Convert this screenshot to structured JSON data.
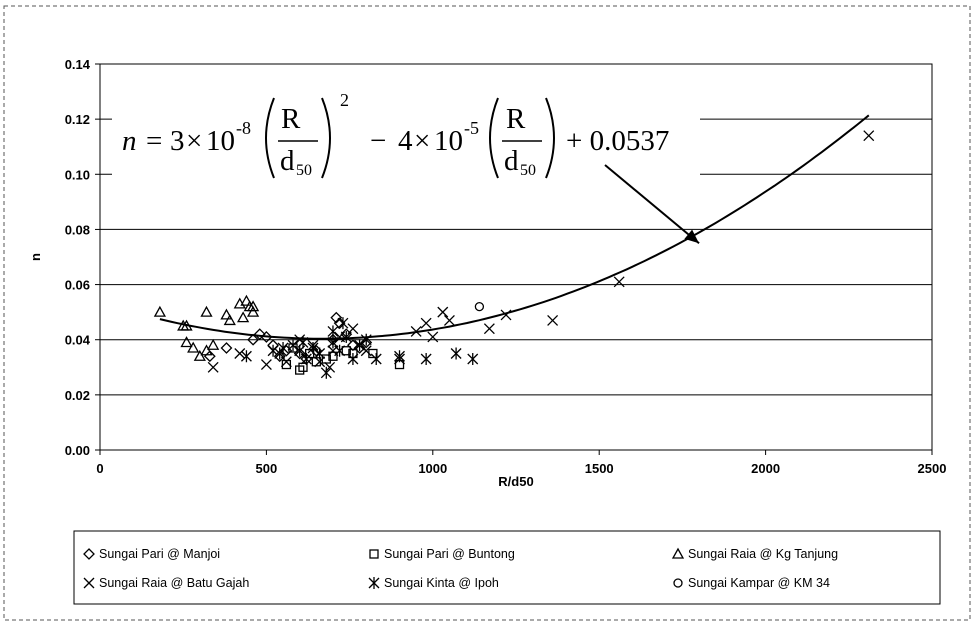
{
  "chart_data": {
    "type": "scatter",
    "title": "",
    "xlabel": "R/d50",
    "ylabel": "n",
    "xlim": [
      0,
      2500
    ],
    "ylim": [
      0,
      0.14
    ],
    "x_ticks": [
      "0",
      "500",
      "1000",
      "1500",
      "2000",
      "2500"
    ],
    "y_ticks": [
      "0.00",
      "0.02",
      "0.04",
      "0.06",
      "0.08",
      "0.10",
      "0.12",
      "0.14"
    ],
    "grid": "horizontal",
    "legend_position": "bottom",
    "series": [
      {
        "name": "Sungai Pari @ Manjoi",
        "marker": "diamond",
        "points": [
          [
            330,
            0.034
          ],
          [
            380,
            0.037
          ],
          [
            460,
            0.04
          ],
          [
            480,
            0.042
          ],
          [
            500,
            0.041
          ],
          [
            520,
            0.038
          ],
          [
            560,
            0.036
          ],
          [
            600,
            0.035
          ],
          [
            650,
            0.036
          ],
          [
            700,
            0.04
          ],
          [
            710,
            0.048
          ],
          [
            720,
            0.046
          ],
          [
            740,
            0.042
          ],
          [
            760,
            0.038
          ],
          [
            780,
            0.037
          ],
          [
            800,
            0.039
          ],
          [
            540,
            0.034
          ],
          [
            620,
            0.033
          ]
        ]
      },
      {
        "name": "Sungai Pari @ Buntong",
        "marker": "square",
        "points": [
          [
            560,
            0.031
          ],
          [
            600,
            0.029
          ],
          [
            610,
            0.03
          ],
          [
            630,
            0.035
          ],
          [
            650,
            0.032
          ],
          [
            680,
            0.033
          ],
          [
            700,
            0.034
          ],
          [
            740,
            0.036
          ],
          [
            760,
            0.035
          ],
          [
            820,
            0.035
          ],
          [
            900,
            0.031
          ],
          [
            580,
            0.037
          ]
        ]
      },
      {
        "name": "Sungai Raia @ Kg Tanjung",
        "marker": "triangle",
        "points": [
          [
            180,
            0.05
          ],
          [
            250,
            0.045
          ],
          [
            260,
            0.045
          ],
          [
            260,
            0.039
          ],
          [
            280,
            0.037
          ],
          [
            300,
            0.034
          ],
          [
            320,
            0.036
          ],
          [
            320,
            0.05
          ],
          [
            340,
            0.038
          ],
          [
            380,
            0.049
          ],
          [
            390,
            0.047
          ],
          [
            420,
            0.053
          ],
          [
            430,
            0.048
          ],
          [
            440,
            0.054
          ],
          [
            450,
            0.052
          ],
          [
            460,
            0.052
          ],
          [
            460,
            0.05
          ]
        ]
      },
      {
        "name": "Sungai Raia @ Batu Gajah",
        "marker": "x",
        "points": [
          [
            340,
            0.03
          ],
          [
            420,
            0.035
          ],
          [
            500,
            0.031
          ],
          [
            560,
            0.032
          ],
          [
            600,
            0.04
          ],
          [
            640,
            0.038
          ],
          [
            660,
            0.032
          ],
          [
            690,
            0.03
          ],
          [
            700,
            0.036
          ],
          [
            720,
            0.041
          ],
          [
            760,
            0.044
          ],
          [
            800,
            0.036
          ],
          [
            900,
            0.033
          ],
          [
            950,
            0.043
          ],
          [
            980,
            0.046
          ],
          [
            1000,
            0.041
          ],
          [
            1030,
            0.05
          ],
          [
            1050,
            0.047
          ],
          [
            1170,
            0.044
          ],
          [
            1220,
            0.049
          ],
          [
            1360,
            0.047
          ],
          [
            1560,
            0.061
          ],
          [
            2310,
            0.114
          ]
        ]
      },
      {
        "name": "Sungai Kinta @ Ipoh",
        "marker": "asterisk",
        "points": [
          [
            440,
            0.034
          ],
          [
            520,
            0.036
          ],
          [
            540,
            0.035
          ],
          [
            580,
            0.038
          ],
          [
            600,
            0.036
          ],
          [
            620,
            0.033
          ],
          [
            640,
            0.037
          ],
          [
            660,
            0.035
          ],
          [
            680,
            0.028
          ],
          [
            700,
            0.039
          ],
          [
            720,
            0.036
          ],
          [
            740,
            0.041
          ],
          [
            760,
            0.033
          ],
          [
            780,
            0.038
          ],
          [
            800,
            0.04
          ],
          [
            830,
            0.033
          ],
          [
            900,
            0.034
          ],
          [
            980,
            0.033
          ],
          [
            1070,
            0.035
          ],
          [
            1120,
            0.033
          ],
          [
            550,
            0.037
          ],
          [
            610,
            0.039
          ],
          [
            700,
            0.043
          ],
          [
            730,
            0.046
          ]
        ]
      },
      {
        "name": "Sungai Kampar @ KM 34",
        "marker": "circle",
        "points": [
          [
            1140,
            0.052
          ]
        ]
      }
    ],
    "trendline": {
      "name": "fitted curve",
      "a": 3e-08,
      "b": -4e-05,
      "c": 0.0537,
      "x_range": [
        180,
        2310
      ]
    },
    "annotation": {
      "text_parts": {
        "lhs": "n",
        "coef1": "3",
        "times": "×",
        "ten": "10",
        "exp1": "-8",
        "R": "R",
        "d": "d",
        "sub50": "50",
        "square": "2",
        "minus": "−",
        "coef2": "4",
        "exp2": "-5",
        "plus_const": "+ 0.0537"
      },
      "arrow_target": [
        1800,
        0.075
      ]
    }
  }
}
